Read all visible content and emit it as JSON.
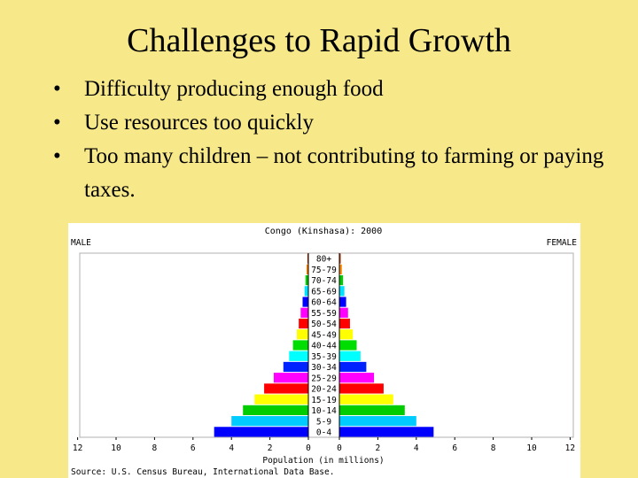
{
  "slide": {
    "title": "Challenges to Rapid Growth",
    "bullets": [
      "Difficulty producing enough food",
      "Use resources too quickly",
      "Too many children – not contributing to farming or paying taxes."
    ],
    "bullet_glyph": "•",
    "background_color": "#f7e88a"
  },
  "chart_data": {
    "type": "bar",
    "orientation": "horizontal",
    "subtype": "population-pyramid",
    "title": "Congo (Kinshasa): 2000",
    "left_label": "MALE",
    "right_label": "FEMALE",
    "xlabel": "Population (in millions)",
    "source": "Source: U.S. Census Bureau, International Data Base.",
    "x_ticks": [
      "12",
      "10",
      "8",
      "6",
      "4",
      "2",
      "0",
      "0",
      "2",
      "4",
      "6",
      "8",
      "10",
      "12"
    ],
    "xlim": [
      0,
      12
    ],
    "grid": false,
    "categories": [
      "80+",
      "75-79",
      "70-74",
      "65-69",
      "60-64",
      "55-59",
      "50-54",
      "45-49",
      "40-44",
      "35-39",
      "30-34",
      "25-29",
      "20-24",
      "15-19",
      "10-14",
      "5-9",
      "0-4"
    ],
    "series": [
      {
        "name": "MALE",
        "values": [
          0.05,
          0.1,
          0.15,
          0.2,
          0.3,
          0.4,
          0.5,
          0.6,
          0.8,
          1.0,
          1.3,
          1.8,
          2.3,
          2.8,
          3.4,
          4.0,
          4.9
        ]
      },
      {
        "name": "FEMALE",
        "values": [
          0.07,
          0.13,
          0.19,
          0.26,
          0.35,
          0.45,
          0.55,
          0.7,
          0.9,
          1.1,
          1.4,
          1.8,
          2.3,
          2.8,
          3.4,
          4.0,
          4.9
        ]
      }
    ],
    "age_colors": [
      "#cc3300",
      "#ff8800",
      "#00cc00",
      "#00e0ff",
      "#0000ff",
      "#ff00ff",
      "#ff0000",
      "#ffff00",
      "#00dd00",
      "#00ffff",
      "#0022ff",
      "#ff00ff",
      "#ff0000",
      "#ffff00",
      "#00cc00",
      "#00ccff",
      "#0000ff"
    ]
  }
}
